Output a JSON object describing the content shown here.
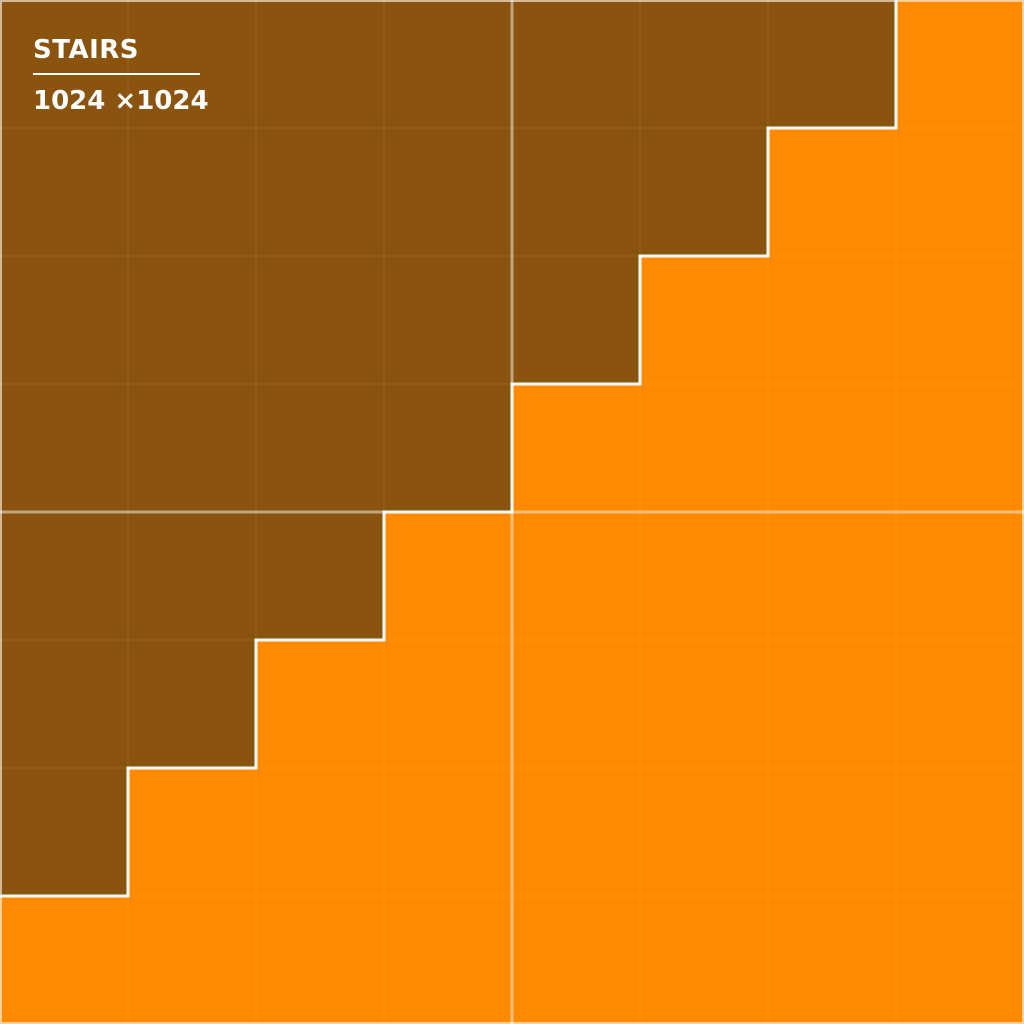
{
  "label": {
    "title": "STAIRS",
    "size": "1024 ×1024"
  },
  "grid": {
    "cells": 8
  },
  "colors": {
    "dark": "#8B540E",
    "light": "#FF8A00",
    "line": "#FFFFFF"
  }
}
